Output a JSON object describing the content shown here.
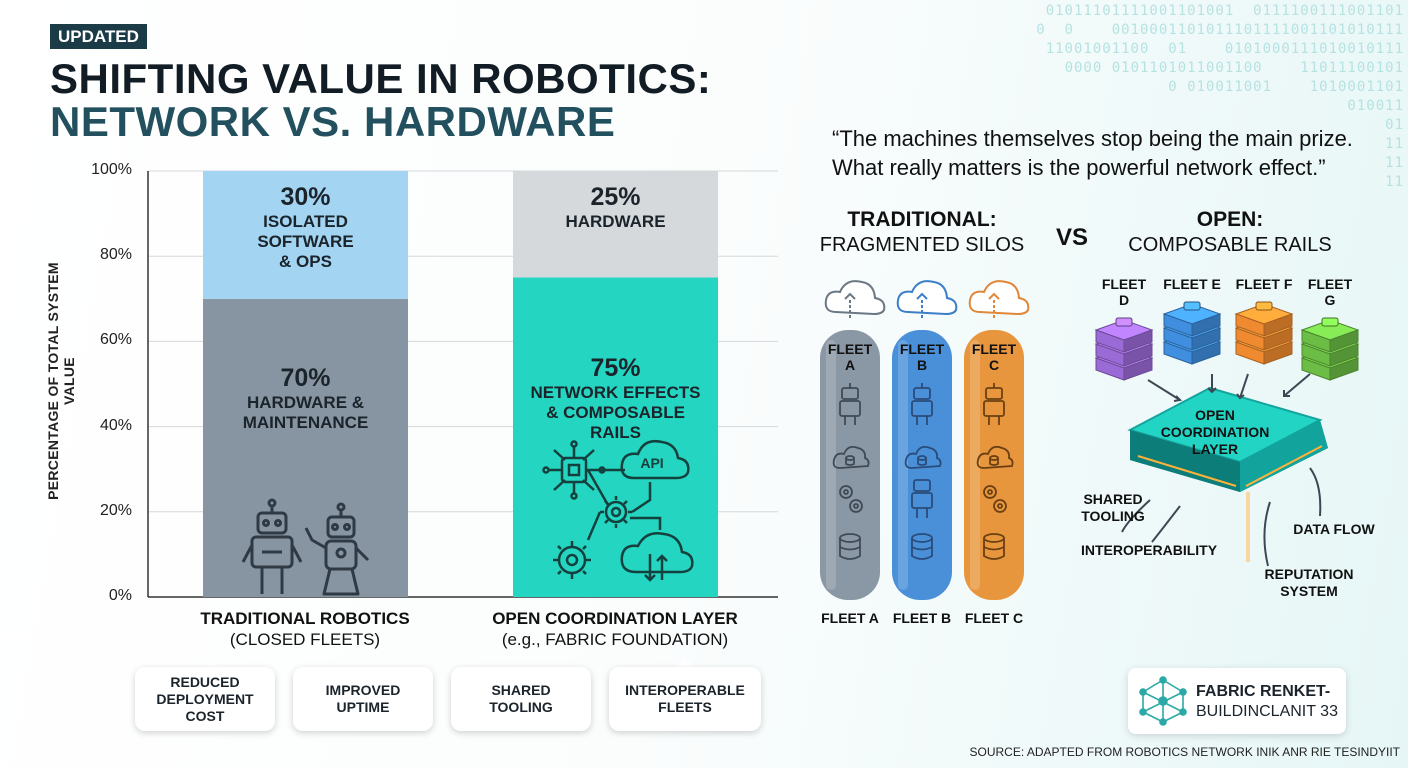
{
  "badge": "UPDATED",
  "title_line1": "SHIFTING VALUE IN ROBOTICS:",
  "title_line2": "NETWORK VS. HARDWARE",
  "binary_text": "01011101111001101001  0111100111001101\n0  0    0010001101011101111001101010111\n11001001100  01    0101000111010010111\n0000 0101101011001100    11011100101\n0 010011001    1010001101\n010011\n01\n11\n11\n11",
  "quote": {
    "line1": "“The machines themselves stop being the main prize.",
    "line2": "What really matters is the powerful network effect.”"
  },
  "chart_data": {
    "type": "bar",
    "stacked": true,
    "ylabel": "PERCENTAGE OF TOTAL SYSTEM VALUE",
    "ylim": [
      0,
      100
    ],
    "yticks": [
      "0%",
      "20%",
      "40%",
      "60%",
      "80%",
      "100%"
    ],
    "grid": true,
    "categories": [
      {
        "name": "TRADITIONAL ROBOTICS",
        "sub": "(CLOSED FLEETS)"
      },
      {
        "name": "OPEN COORDINATION LAYER",
        "sub": "(e.g., FABRIC FOUNDATION)"
      }
    ],
    "bars": [
      {
        "segments": [
          {
            "value": 70,
            "pct_label": "70%",
            "lines": [
              "HARDWARE &",
              "MAINTENANCE"
            ],
            "color": "#8795a3"
          },
          {
            "value": 30,
            "pct_label": "30%",
            "lines": [
              "ISOLATED",
              "SOFTWARE",
              "& OPS"
            ],
            "color": "#a3d4f2"
          }
        ]
      },
      {
        "segments": [
          {
            "value": 75,
            "pct_label": "75%",
            "lines": [
              "NETWORK EFFECTS",
              "& COMPOSABLE",
              "RAILS"
            ],
            "color": "#24d6c1"
          },
          {
            "value": 25,
            "pct_label": "25%",
            "lines": [
              "HARDWARE"
            ],
            "color": "#d6d9dc"
          }
        ]
      }
    ],
    "icon_text": "API"
  },
  "benefits": [
    "REDUCED\nDEPLOYMENT\nCOST",
    "IMPROVED\nUPTIME",
    "SHARED\nTOOLING",
    "INTEROPERABLE\nFLEETS"
  ],
  "diagram": {
    "trad_title": "TRADITIONAL:",
    "trad_sub": "FRAGMENTED SILOS",
    "vs": "VS",
    "open_title": "OPEN:",
    "open_sub": "COMPOSABLE RAILS",
    "silos": [
      {
        "top": "FLEET\nA",
        "bottom": "FLEET A",
        "color": "#8a97a4"
      },
      {
        "top": "FLEET\nB",
        "bottom": "FLEET B",
        "color": "#4a90d9"
      },
      {
        "top": "FLEET\nC",
        "bottom": "FLEET C",
        "color": "#e8963d"
      }
    ],
    "open_fleets": [
      {
        "label": "FLEET\nD",
        "color": "#9a6bd6"
      },
      {
        "label": "FLEET E",
        "color": "#3f8ee0"
      },
      {
        "label": "FLEET F",
        "color": "#f08a30"
      },
      {
        "label": "FLEET\nG",
        "color": "#6cbd45"
      }
    ],
    "layer_label": "OPEN\nCOORDINATION\nLAYER",
    "annotations": [
      "SHARED\nTOOLING",
      "INTEROPERABILITY",
      "DATA FLOW",
      "REPUTATION\nSYSTEM"
    ]
  },
  "logo": {
    "line1": "FABRIC RENKET-",
    "line2": "BUILDINCLANIT 33"
  },
  "source": "SOURCE: ADAPTED FROM ROBOTICS NETWORK INIK ANR RIE TESINDYIIT"
}
